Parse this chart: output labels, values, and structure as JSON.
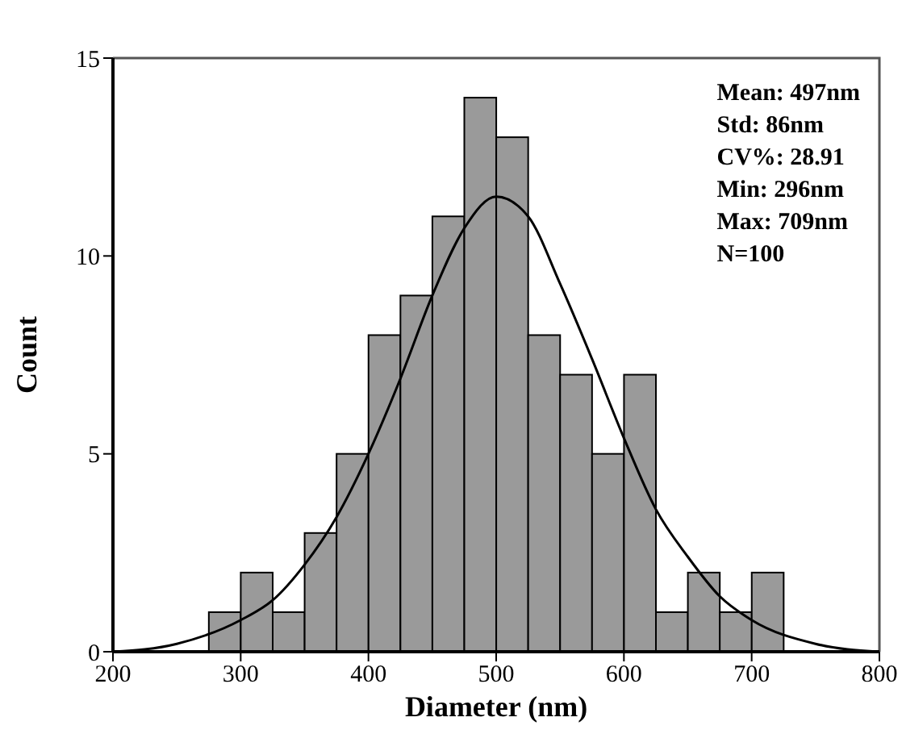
{
  "chart_data": {
    "type": "histogram",
    "xlabel": "Diameter (nm)",
    "ylabel": "Count",
    "bins": [
      275,
      300,
      325,
      350,
      375,
      400,
      425,
      450,
      475,
      500,
      525,
      550,
      575,
      600,
      625,
      650,
      675,
      700,
      725
    ],
    "values": [
      1,
      2,
      1,
      3,
      5,
      8,
      9,
      11,
      14,
      13,
      8,
      7,
      5,
      7,
      1,
      2,
      1,
      2
    ],
    "color": "#9a9a9a",
    "series": [
      {
        "type": "line",
        "color": "#000000",
        "x": [
          200,
          250,
          300,
          325,
          350,
          375,
          400,
          425,
          450,
          475,
          500,
          525,
          550,
          575,
          600,
          625,
          650,
          675,
          700,
          750,
          800
        ],
        "values": [
          0,
          0.2,
          0.8,
          1.3,
          2.2,
          3.4,
          5,
          6.9,
          9,
          10.7,
          11.5,
          11,
          9.3,
          7.4,
          5.4,
          3.6,
          2.4,
          1.4,
          0.8,
          0.2,
          0
        ]
      }
    ],
    "xlim": [
      200,
      800
    ],
    "xticks": [
      200,
      300,
      400,
      500,
      600,
      700,
      800
    ],
    "ylim": [
      0,
      15
    ],
    "yticks": [
      0,
      5,
      10,
      15
    ],
    "grid": false,
    "legend": false,
    "annotations": [
      "Mean: 497nm",
      "Std: 86nm",
      "CV%: 28.91",
      "Min: 296nm",
      "Max: 709nm",
      "N=100"
    ]
  }
}
